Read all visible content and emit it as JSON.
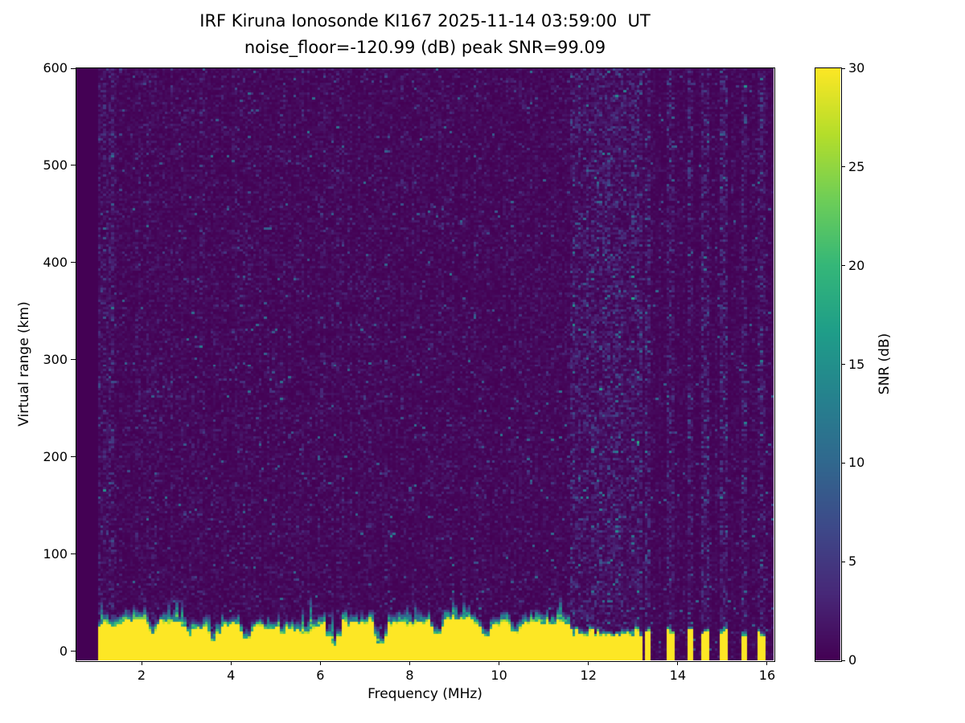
{
  "chart_data": {
    "type": "heatmap",
    "title": "IRF Kiruna Ionosonde KI167 2025-11-14 03:59:00  UT",
    "subtitle": "noise_floor=-120.99 (dB) peak SNR=99.09",
    "instrument": "IRF Kiruna Ionosonde",
    "station_code": "KI167",
    "timestamp_ut": "2025-11-14 03:59:00",
    "noise_floor_db": -120.99,
    "peak_snr_db": 99.09,
    "xlabel": "Frequency (MHz)",
    "ylabel": "Virtual range (km)",
    "colorbar_label": "SNR (dB)",
    "xlim": [
      0.542,
      16.144
    ],
    "ylim": [
      -9.1,
      600
    ],
    "clim": [
      0,
      30
    ],
    "xticks": [
      2,
      4,
      6,
      8,
      10,
      12,
      14,
      16
    ],
    "yticks": [
      0,
      100,
      200,
      300,
      400,
      500,
      600
    ],
    "colorbar_ticks": [
      0,
      5,
      10,
      15,
      20,
      25,
      30
    ],
    "colormap": "viridis",
    "colormap_stops": [
      "#440154",
      "#482878",
      "#3e4989",
      "#31688e",
      "#26828e",
      "#1f9e89",
      "#35b779",
      "#6ece58",
      "#b5de2b",
      "#fde725"
    ],
    "features": {
      "description": "Dark viridis noise background with random speckle; saturated yellow ground/strong-echo band from bottom up to ~20-34 km virtual range spanning 1.0-11.56 MHz with teal transition fringe; intermittent vertical echo stripes between 11.6 and 16 MHz; faint elevated-noise columns above those stripes.",
      "ground_band": {
        "freq_range_mhz": [
          1.0,
          11.56
        ],
        "top_km_mean": 26,
        "top_km_min": 19,
        "top_km_max": 34,
        "snr_db": 30
      },
      "band_notches": [
        {
          "f": 2.25,
          "top": 18
        },
        {
          "f": 3.05,
          "top": 16
        },
        {
          "f": 3.62,
          "top": 10
        },
        {
          "f": 4.35,
          "top": 11
        },
        {
          "f": 5.15,
          "top": 17
        },
        {
          "f": 6.3,
          "top": 6
        },
        {
          "f": 7.35,
          "top": 7
        },
        {
          "f": 8.62,
          "top": 16
        },
        {
          "f": 9.7,
          "top": 15
        },
        {
          "f": 10.35,
          "top": 17
        }
      ],
      "stripes_mhz": [
        [
          11.58,
          11.64
        ],
        [
          11.7,
          11.76
        ],
        [
          11.82,
          11.88
        ],
        [
          11.94,
          12.0
        ],
        [
          12.06,
          12.12
        ],
        [
          12.18,
          12.25
        ],
        [
          12.31,
          12.38
        ],
        [
          12.44,
          12.51
        ],
        [
          12.57,
          12.63
        ],
        [
          12.7,
          12.77
        ],
        [
          12.84,
          12.91
        ],
        [
          12.98,
          13.06
        ],
        [
          13.12,
          13.18
        ],
        [
          13.3,
          13.37
        ],
        [
          13.78,
          13.87
        ],
        [
          14.24,
          14.3
        ],
        [
          14.56,
          14.65
        ],
        [
          15.0,
          15.08
        ],
        [
          15.45,
          15.53
        ],
        [
          15.84,
          15.93
        ]
      ],
      "background_noise_mean_db": 0.8,
      "speckle_prob": 0.012
    },
    "render": {
      "freq_bins": 260,
      "range_bins": 246,
      "seed": 1167
    }
  }
}
